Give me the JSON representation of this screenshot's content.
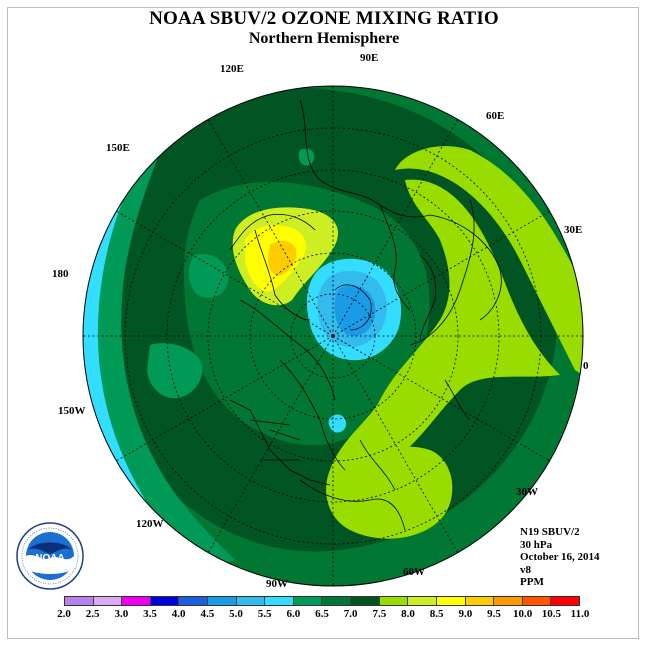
{
  "title": "NOAA SBUV/2 OZONE MIXING RATIO",
  "subtitle": "Northern Hemisphere",
  "longitude_labels": [
    {
      "name": "lon-90e",
      "text": "90E"
    },
    {
      "name": "lon-120e",
      "text": "120E"
    },
    {
      "name": "lon-60e",
      "text": "60E"
    },
    {
      "name": "lon-150e",
      "text": "150E"
    },
    {
      "name": "lon-30e",
      "text": "30E"
    },
    {
      "name": "lon-180",
      "text": "180"
    },
    {
      "name": "lon-0",
      "text": "0"
    },
    {
      "name": "lon-150w",
      "text": "150W"
    },
    {
      "name": "lon-30w",
      "text": "30W"
    },
    {
      "name": "lon-120w",
      "text": "120W"
    },
    {
      "name": "lon-60w",
      "text": "60W"
    },
    {
      "name": "lon-90w",
      "text": "90W"
    }
  ],
  "info": {
    "satellite": "N19 SBUV/2",
    "pressure": "30 hPa",
    "date": "October 16, 2014",
    "version": "v8",
    "units": "PPM"
  },
  "logo": {
    "text": "NOAA",
    "ring_text": "NATIONAL OCEANIC AND ATMOSPHERIC ADMINISTRATION · U.S. DEPARTMENT OF COMMERCE"
  },
  "colorbar": {
    "ticks": [
      "2.0",
      "2.5",
      "3.0",
      "3.5",
      "4.0",
      "4.5",
      "5.0",
      "5.5",
      "6.0",
      "6.5",
      "7.0",
      "7.5",
      "8.0",
      "8.5",
      "9.0",
      "9.5",
      "10.0",
      "10.5",
      "11.0"
    ],
    "colors": [
      "#bb80ee",
      "#dcaaf2",
      "#ee00ee",
      "#0000dd",
      "#1a5fe0",
      "#1a9be8",
      "#33bbee",
      "#33ddff",
      "#009955",
      "#007733",
      "#005522",
      "#99dd00",
      "#ccee22",
      "#ffff00",
      "#ffcc00",
      "#ff9900",
      "#ff5500",
      "#ff0000",
      "#996633"
    ]
  },
  "map_colors": {
    "base": "#007733",
    "dark": "#005522",
    "cyan": "#33ddff",
    "green": "#009955",
    "lime": "#99dd00",
    "yellow_green": "#ccee22",
    "yellow": "#ffff00",
    "orange": "#ffcc00",
    "light_blue": "#33bbee",
    "mid_blue": "#1a9be8",
    "blue": "#1a5fe0"
  }
}
